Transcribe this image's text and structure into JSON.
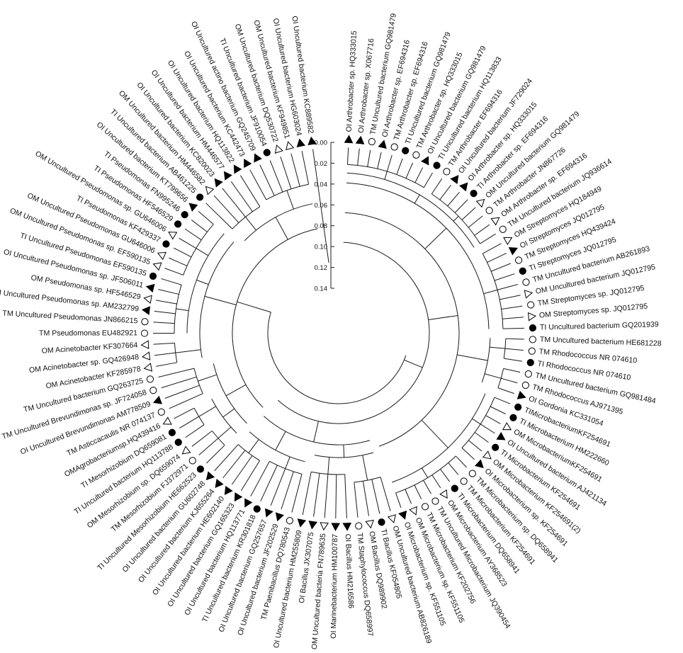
{
  "figure": {
    "scale": {
      "ticks": [
        "0.00",
        "0.02",
        "0.04",
        "0.06",
        "0.08",
        "0.10",
        "0.12",
        "0.14"
      ]
    },
    "marker_legend": {
      "filled-triangle": "filled triangle",
      "open-triangle": "open triangle",
      "filled-circle": "filled circle",
      "open-circle": "open circle"
    },
    "taxa": [
      {
        "label": "OI Arthrobacter sp. HQ333015",
        "marker": "filled-triangle"
      },
      {
        "label": "OI Arthrobacter sp. X067716",
        "marker": "filled-triangle"
      },
      {
        "label": "TM Uncultured bacterium GQ981479",
        "marker": "open-circle"
      },
      {
        "label": "OI Arthrobacter sp. EF694316",
        "marker": "filled-triangle"
      },
      {
        "label": "TM Arthrobacter sp. EF694316",
        "marker": "open-circle"
      },
      {
        "label": "TI Uncultured bacterium GQ981479",
        "marker": "filled-circle"
      },
      {
        "label": "TM Arthrobacter sp. HQ333015",
        "marker": "open-circle"
      },
      {
        "label": "OI Uncultured bacterium GQ981479",
        "marker": "filled-triangle"
      },
      {
        "label": "TI Uncultured bacterium HQ113833",
        "marker": "filled-circle"
      },
      {
        "label": "TM Arthrobacter EF694316",
        "marker": "open-circle"
      },
      {
        "label": "OI Uncultured bacterium JF729024",
        "marker": "filled-triangle"
      },
      {
        "label": "OI Arthrobacter sp. HQ333015",
        "marker": "filled-triangle"
      },
      {
        "label": "TI Arthrobacter sp. EF694316",
        "marker": "filled-circle"
      },
      {
        "label": "OM Uncultured bacterium GQ981479",
        "marker": "open-triangle"
      },
      {
        "label": "TM Arthrobacter JN867726",
        "marker": "open-circle"
      },
      {
        "label": "OM Arthrobacter sp. EF694316",
        "marker": "open-triangle"
      },
      {
        "label": "TM Uncultured bacterium JQ936614",
        "marker": "open-circle"
      },
      {
        "label": "OM Streptomyces HQ184949",
        "marker": "open-triangle"
      },
      {
        "label": "OI Streptomyces JQ012795",
        "marker": "filled-triangle"
      },
      {
        "label": "TM Streptomyces HQ439424",
        "marker": "open-circle"
      },
      {
        "label": "TI Streptomyces JQ012795",
        "marker": "filled-circle"
      },
      {
        "label": "TM Uncultured bacterium AB261893",
        "marker": "open-circle"
      },
      {
        "label": "OM Uncultured bacterium JQ012795",
        "marker": "open-triangle"
      },
      {
        "label": "TM Streptomyces sp. JQ012795",
        "marker": "open-circle"
      },
      {
        "label": "OM Streptomyces sp. JQ012795",
        "marker": "open-triangle"
      },
      {
        "label": "TI Uncultured bacterium GQ201939",
        "marker": "filled-circle"
      },
      {
        "label": "TM Uncultured bacterium HE681228",
        "marker": "open-circle"
      },
      {
        "label": "TM Rhodococcus NR 074610",
        "marker": "open-circle"
      },
      {
        "label": "TI Rhodococcus NR 074610",
        "marker": "filled-circle"
      },
      {
        "label": "TM Uncultured bacterium GQ981484",
        "marker": "open-circle"
      },
      {
        "label": "TM Rhodococcus AJ971395",
        "marker": "open-circle"
      },
      {
        "label": "OI Gordonia KC331054",
        "marker": "filled-triangle"
      },
      {
        "label": "TIMicrobacteriumKF254691",
        "marker": "filled-circle"
      },
      {
        "label": "TI Microbacterium HM222660",
        "marker": "filled-circle"
      },
      {
        "label": "OM MicrobacteriumKF254691",
        "marker": "open-triangle"
      },
      {
        "label": "OI Uncultured bacterium AJ421134",
        "marker": "filled-triangle"
      },
      {
        "label": "TI Microbacterium KF254691",
        "marker": "filled-circle"
      },
      {
        "label": "OM Microbacterium KF254691(2)",
        "marker": "open-triangle"
      },
      {
        "label": "OI Microbacterium sp. KF254691",
        "marker": "filled-triangle"
      },
      {
        "label": "TM Microbacterium sp. DQ658941",
        "marker": "open-circle"
      },
      {
        "label": "TM Microbacterium KF254691",
        "marker": "open-circle"
      },
      {
        "label": "TI Microbacterium DQ658941",
        "marker": "filled-circle"
      },
      {
        "label": "OM Microbacterium AY368523",
        "marker": "open-triangle"
      },
      {
        "label": "TM Uncultured Microbacterium JQ390454",
        "marker": "open-circle"
      },
      {
        "label": "TM Microbacterium KF202756",
        "marker": "open-circle"
      },
      {
        "label": "OM Microbacterium sp. KF551105",
        "marker": "open-triangle"
      },
      {
        "label": "OI Microbacterium sp. KF551105",
        "marker": "filled-triangle"
      },
      {
        "label": "OM Uncultured bacterium AB826189",
        "marker": "open-triangle"
      },
      {
        "label": "TI Bacillus KF054805",
        "marker": "filled-circle"
      },
      {
        "label": "OM Bacillus DQ989902",
        "marker": "open-triangle"
      },
      {
        "label": "TM Staphylococcus DQ658997",
        "marker": "open-circle"
      },
      {
        "label": "OI Bacillus HM216586",
        "marker": "filled-triangle"
      },
      {
        "label": "OI Marinebacterium HM100787",
        "marker": "filled-triangle"
      },
      {
        "label": "OM Uncultured bacteria FN789635",
        "marker": "open-triangle"
      },
      {
        "label": "OI Bacillus JX307075",
        "marker": "filled-triangle"
      },
      {
        "label": "OI Uncultured bacterium HM255809",
        "marker": "filled-triangle"
      },
      {
        "label": "TM Paenibacillus DQ780543",
        "marker": "open-circle"
      },
      {
        "label": "OI Uncultured bacterium JF202529",
        "marker": "filled-triangle"
      },
      {
        "label": "OI Uncultured bacterium GQ257657",
        "marker": "filled-triangle"
      },
      {
        "label": "TI Uncultured bacterium KR301818",
        "marker": "filled-circle"
      },
      {
        "label": "OI Uncultured bacterium HQ113771",
        "marker": "filled-triangle"
      },
      {
        "label": "OI Uncultured bacterium GQ165323",
        "marker": "filled-triangle"
      },
      {
        "label": "OI Uncultured bacterium HE602140",
        "marker": "filled-triangle"
      },
      {
        "label": "OI Uncultured bacterium KJ655264",
        "marker": "filled-triangle"
      },
      {
        "label": "OI Uncultured bacterium GU602748",
        "marker": "filled-triangle"
      },
      {
        "label": "TI Uncultured Mesorhizobium HE662523",
        "marker": "filled-circle"
      },
      {
        "label": "TM Mesorhizobium FJ372971",
        "marker": "open-circle"
      },
      {
        "label": "OM Mesorhizobium sp. DQ659074",
        "marker": "open-triangle"
      },
      {
        "label": "TI Uncultured bacterium HQ113788",
        "marker": "filled-circle"
      },
      {
        "label": "TI Mesorhizobium DQ659081",
        "marker": "filled-circle"
      },
      {
        "label": "OMAgrobacteriumsp.HQ439416",
        "marker": "open-triangle"
      },
      {
        "label": "TM Asticcacaulis NR 074137",
        "marker": "open-circle"
      },
      {
        "label": "OI Uncultured Brevundimonas AM778509",
        "marker": "filled-triangle"
      },
      {
        "label": "TM Uncultured Brevundimonas sp. JF724058",
        "marker": "open-circle"
      },
      {
        "label": "TM Uncultured bacterium GQ263725",
        "marker": "open-circle"
      },
      {
        "label": "OM Acinetobacter KF285978",
        "marker": "open-triangle"
      },
      {
        "label": "OM Acinetobacter sp. GQ426948",
        "marker": "open-triangle"
      },
      {
        "label": "OM Acinetobacter KF307664",
        "marker": "open-triangle"
      },
      {
        "label": "TM Pseudomonas EU482921",
        "marker": "open-circle"
      },
      {
        "label": "TM Uncultured Pseudomonas JN866215",
        "marker": "open-circle"
      },
      {
        "label": "OI Uncultured Pseudomonas sp. AM232799",
        "marker": "filled-triangle"
      },
      {
        "label": "OM Pseudomonas sp. HF546529",
        "marker": "open-triangle"
      },
      {
        "label": "OI Uncultured Pseudomonas sp. JF506011",
        "marker": "filled-triangle"
      },
      {
        "label": "TI Uncultured Pseudomonas EF590135",
        "marker": "filled-circle"
      },
      {
        "label": "OM Uncultured Pseudomonas sp. EF590135",
        "marker": "open-triangle"
      },
      {
        "label": "OM Uncultured Pseudomonas GU646006",
        "marker": "open-triangle"
      },
      {
        "label": "TI Pseudomonas KF429337",
        "marker": "filled-circle"
      },
      {
        "label": "OM Uncultured Pseudomonas sp. GU646006",
        "marker": "open-triangle"
      },
      {
        "label": "TI Pseudomonas HF546529",
        "marker": "filled-circle"
      },
      {
        "label": "TI Pseudomonas FN995246",
        "marker": "filled-circle"
      },
      {
        "label": "OI Uncultured bacterium KT799656",
        "marker": "filled-triangle"
      },
      {
        "label": "TI Uncultured bacterium AB461225",
        "marker": "filled-circle"
      },
      {
        "label": "OM Uncultured bacterium HM446582",
        "marker": "open-triangle"
      },
      {
        "label": "OI Uncultured bacterium KC820023",
        "marker": "filled-triangle"
      },
      {
        "label": "OI Uncultured bacterium HM446577",
        "marker": "filled-triangle"
      },
      {
        "label": "OI Uncultured bacterium HQ113822",
        "marker": "filled-triangle"
      },
      {
        "label": "OI Uncultured bacterium KC442473",
        "marker": "filled-triangle"
      },
      {
        "label": "OI Uncultured actino bacterium GQ245709",
        "marker": "filled-triangle"
      },
      {
        "label": "TI Uncultured bacterium JF910054",
        "marker": "filled-circle"
      },
      {
        "label": "OM Uncultured bacterium DQ530722",
        "marker": "open-triangle"
      },
      {
        "label": "OM Uncultured bacterium KF949851",
        "marker": "open-triangle"
      },
      {
        "label": "OI Uncultured bacterium HG603024",
        "marker": "filled-triangle"
      },
      {
        "label": "OI Uncultured bacterium KC889582",
        "marker": "filled-triangle"
      }
    ]
  }
}
